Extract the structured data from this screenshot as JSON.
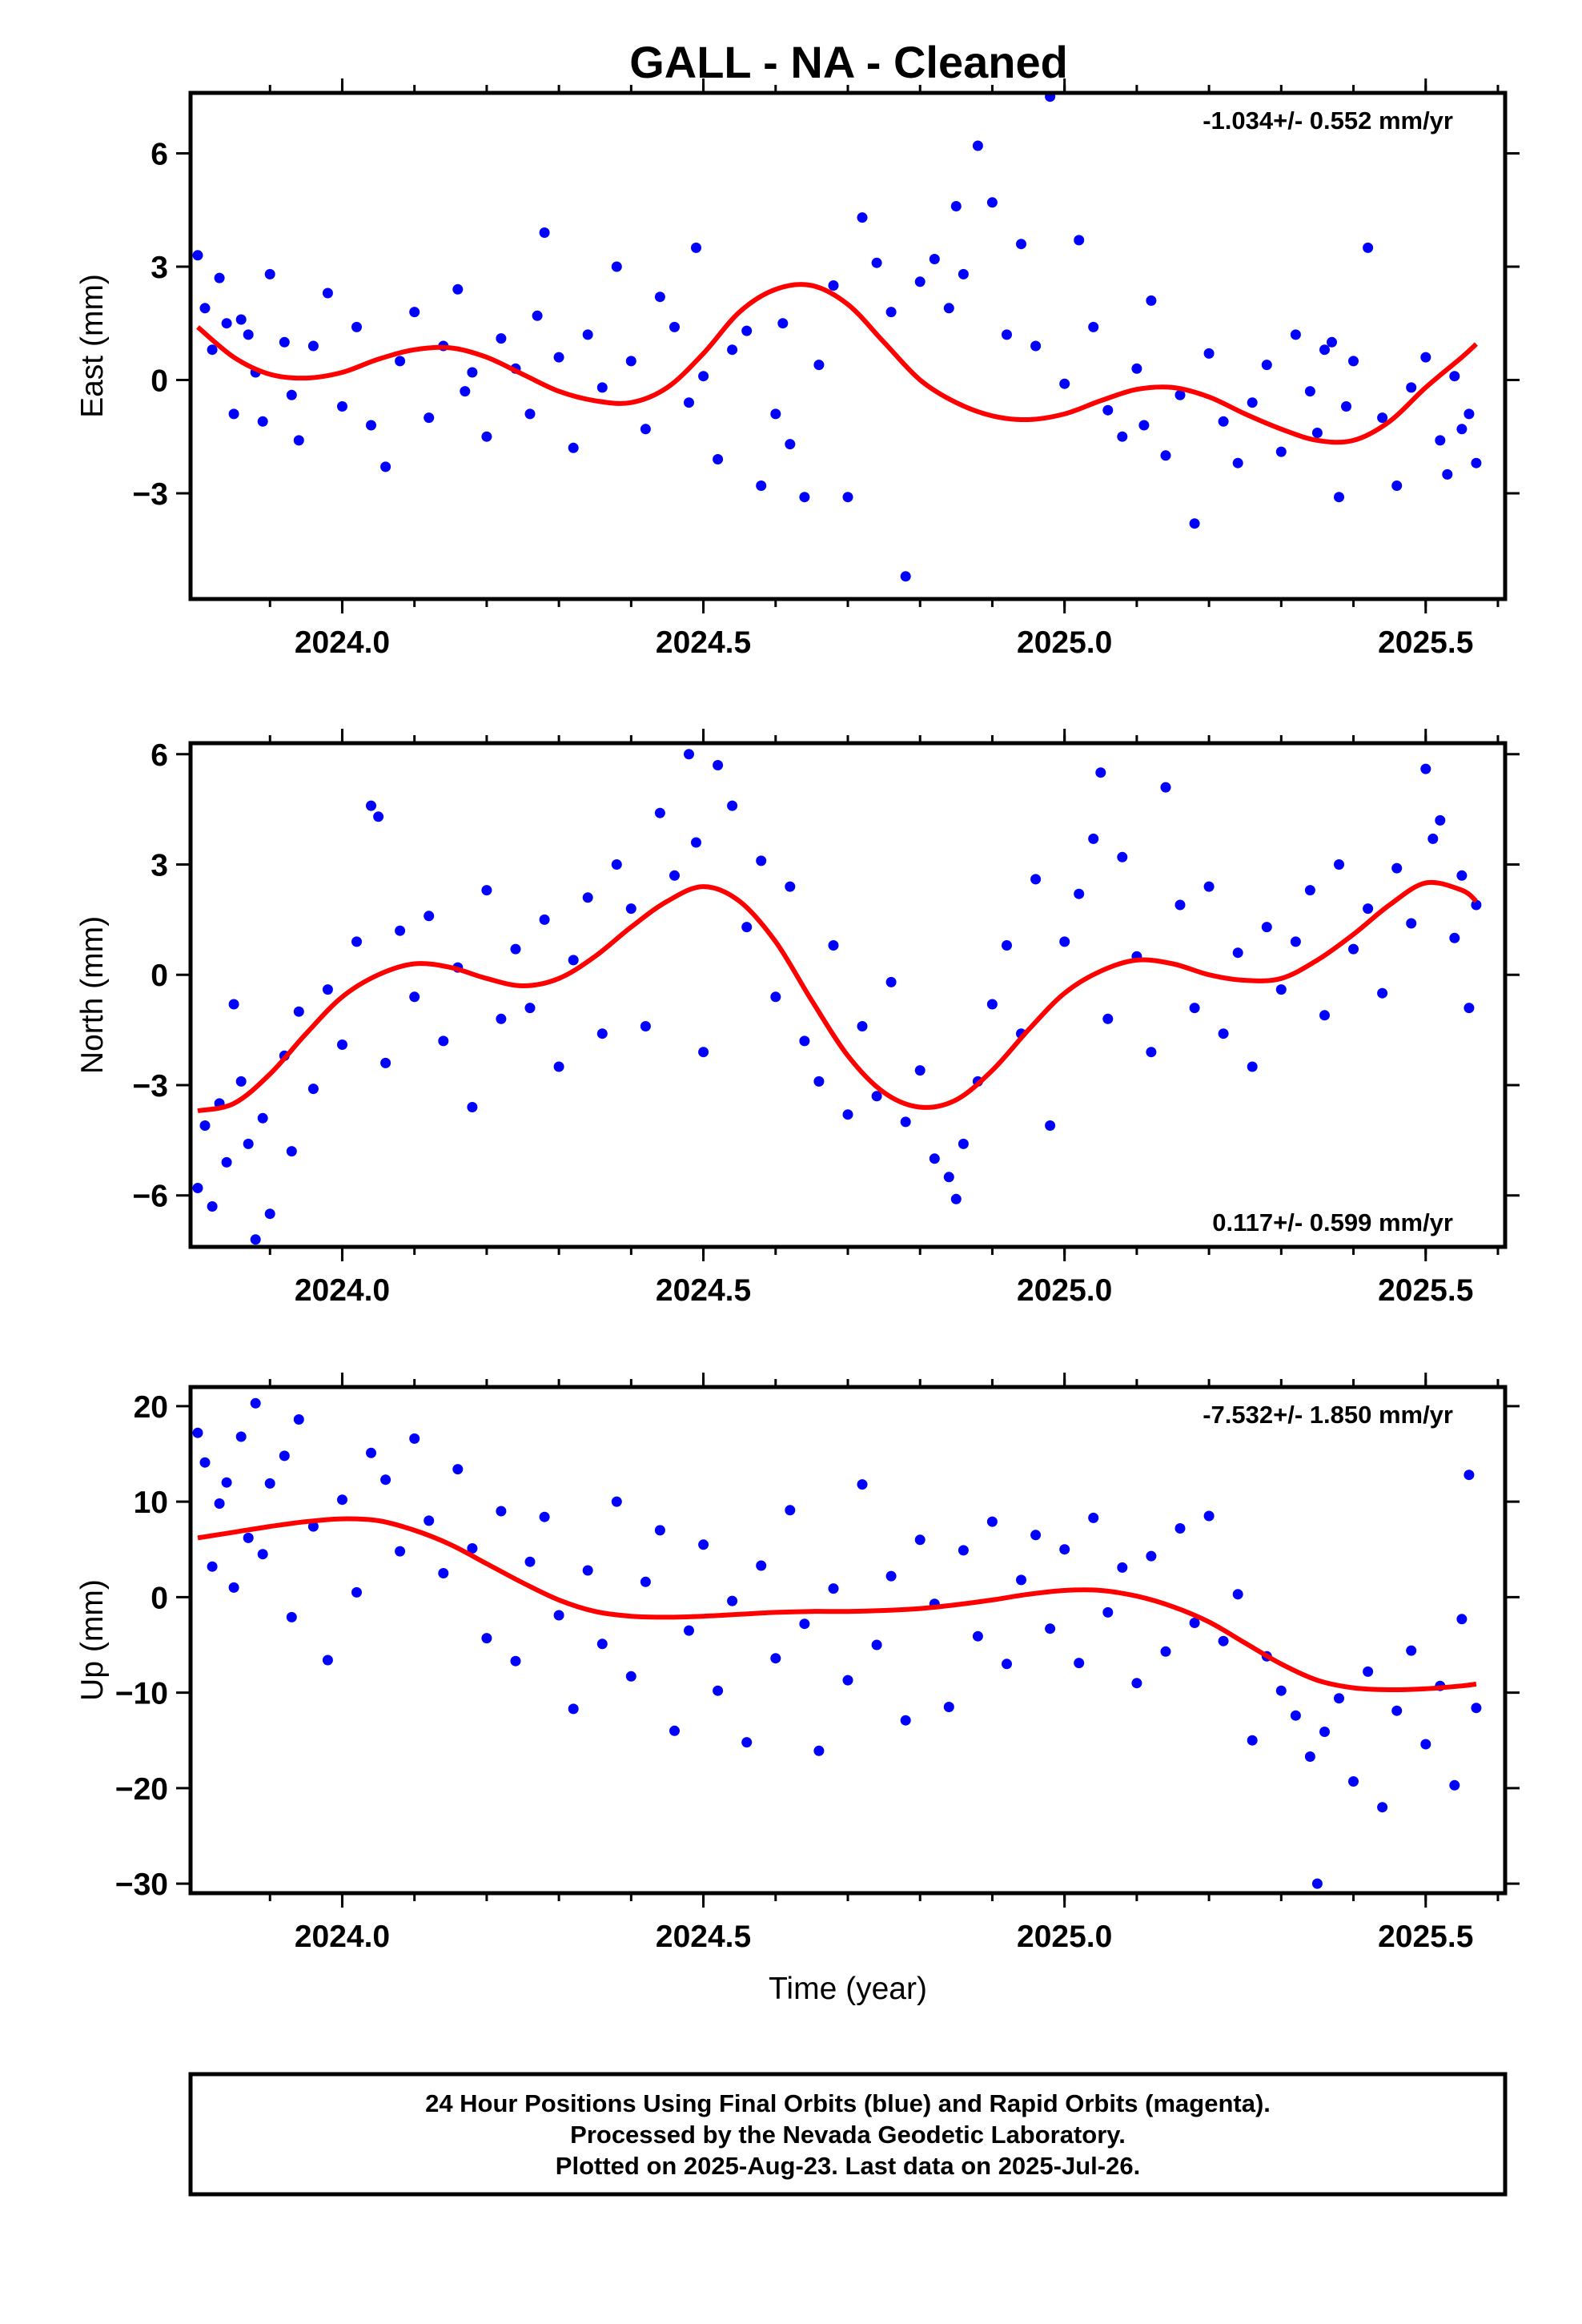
{
  "title": "GALL  - NA - Cleaned",
  "footer": {
    "lines": [
      "24 Hour Positions Using Final Orbits (blue) and Rapid Orbits (magenta).",
      "Processed by the Nevada Geodetic Laboratory.",
      "Plotted on 2025-Aug-23. Last data on 2025-Jul-26."
    ]
  },
  "colors": {
    "points": "#0000ff",
    "fit": "#ff0000",
    "frame": "#000000"
  },
  "chart_data": [
    {
      "type": "scatter",
      "name": "east",
      "ylabel": "East (mm)",
      "xlabel": "",
      "rate": "-1.034+/- 0.552 mm/yr",
      "rate_position": "top-right",
      "xlim": [
        2023.79,
        2025.61
      ],
      "ylim": [
        -5.8,
        7.6
      ],
      "xticks": [
        2024.0,
        2024.5,
        2025.0,
        2025.5
      ],
      "xtick_labels": [
        "2024.0",
        "2024.5",
        "2025.0",
        "2025.5"
      ],
      "yticks": [
        -3,
        0,
        3,
        6
      ],
      "ytick_labels": [
        "−3",
        "0",
        "3",
        "6"
      ],
      "grid": false,
      "fit": {
        "x": [
          2023.8,
          2023.85,
          2023.9,
          2023.95,
          2024.0,
          2024.05,
          2024.1,
          2024.15,
          2024.2,
          2024.25,
          2024.3,
          2024.35,
          2024.4,
          2024.45,
          2024.5,
          2024.55,
          2024.6,
          2024.65,
          2024.7,
          2024.75,
          2024.8,
          2024.85,
          2024.9,
          2024.95,
          2025.0,
          2025.05,
          2025.1,
          2025.15,
          2025.2,
          2025.25,
          2025.3,
          2025.35,
          2025.4,
          2025.45,
          2025.5,
          2025.55,
          2025.57
        ],
        "y": [
          1.4,
          0.6,
          0.15,
          0.05,
          0.2,
          0.55,
          0.8,
          0.85,
          0.6,
          0.15,
          -0.3,
          -0.55,
          -0.6,
          -0.2,
          0.7,
          1.8,
          2.4,
          2.5,
          2.0,
          1.0,
          0.0,
          -0.6,
          -0.95,
          -1.05,
          -0.9,
          -0.55,
          -0.25,
          -0.2,
          -0.45,
          -0.9,
          -1.3,
          -1.6,
          -1.6,
          -1.1,
          -0.2,
          0.6,
          0.95
        ]
      },
      "x": [
        2023.8,
        2023.81,
        2023.82,
        2023.83,
        2023.84,
        2023.85,
        2023.86,
        2023.87,
        2023.88,
        2023.89,
        2023.9,
        2023.92,
        2023.93,
        2023.94,
        2023.96,
        2023.98,
        2024.0,
        2024.02,
        2024.04,
        2024.06,
        2024.08,
        2024.1,
        2024.12,
        2024.14,
        2024.16,
        2024.17,
        2024.18,
        2024.2,
        2024.22,
        2024.24,
        2024.26,
        2024.27,
        2024.28,
        2024.3,
        2024.32,
        2024.34,
        2024.36,
        2024.38,
        2024.4,
        2024.42,
        2024.44,
        2024.46,
        2024.48,
        2024.49,
        2024.5,
        2024.52,
        2024.54,
        2024.56,
        2024.58,
        2024.6,
        2024.61,
        2024.62,
        2024.64,
        2024.66,
        2024.68,
        2024.7,
        2024.72,
        2024.74,
        2024.76,
        2024.78,
        2024.8,
        2024.82,
        2024.84,
        2024.85,
        2024.86,
        2024.88,
        2024.9,
        2024.92,
        2024.94,
        2024.96,
        2024.98,
        2025.0,
        2025.02,
        2025.04,
        2025.06,
        2025.08,
        2025.1,
        2025.11,
        2025.12,
        2025.14,
        2025.16,
        2025.18,
        2025.2,
        2025.22,
        2025.24,
        2025.26,
        2025.28,
        2025.3,
        2025.32,
        2025.34,
        2025.35,
        2025.36,
        2025.37,
        2025.38,
        2025.39,
        2025.4,
        2025.42,
        2025.44,
        2025.46,
        2025.48,
        2025.5,
        2025.52,
        2025.53,
        2025.54,
        2025.55,
        2025.56,
        2025.57
      ],
      "y": [
        3.3,
        1.9,
        0.8,
        2.7,
        1.5,
        -0.9,
        1.6,
        1.2,
        0.2,
        -1.1,
        2.8,
        1.0,
        -0.4,
        -1.6,
        0.9,
        2.3,
        -0.7,
        1.4,
        -1.2,
        -2.3,
        0.5,
        1.8,
        -1.0,
        0.9,
        2.4,
        -0.3,
        0.2,
        -1.5,
        1.1,
        0.3,
        -0.9,
        1.7,
        3.9,
        0.6,
        -1.8,
        1.2,
        -0.2,
        3.0,
        0.5,
        -1.3,
        2.2,
        1.4,
        -0.6,
        3.5,
        0.1,
        -2.1,
        0.8,
        1.3,
        -2.8,
        -0.9,
        1.5,
        -1.7,
        -3.1,
        0.4,
        2.5,
        -3.1,
        4.3,
        3.1,
        1.8,
        -5.2,
        2.6,
        3.2,
        1.9,
        4.6,
        2.8,
        6.2,
        4.7,
        1.2,
        3.6,
        0.9,
        7.5,
        -0.1,
        3.7,
        1.4,
        -0.8,
        -1.5,
        0.3,
        -1.2,
        2.1,
        -2.0,
        -0.4,
        -3.8,
        0.7,
        -1.1,
        -2.2,
        -0.6,
        0.4,
        -1.9,
        1.2,
        -0.3,
        -1.4,
        0.8,
        1.0,
        -3.1,
        -0.7,
        0.5,
        3.5,
        -1.0,
        -2.8,
        -0.2,
        0.6,
        -1.6,
        -2.5,
        0.1,
        -1.3,
        -0.9,
        -2.2
      ]
    },
    {
      "type": "scatter",
      "name": "north",
      "ylabel": "North (mm)",
      "xlabel": "",
      "rate": "0.117+/- 0.599 mm/yr",
      "rate_position": "bottom-right",
      "xlim": [
        2023.79,
        2025.61
      ],
      "ylim": [
        -7.4,
        6.3
      ],
      "xticks": [
        2024.0,
        2024.5,
        2025.0,
        2025.5
      ],
      "xtick_labels": [
        "2024.0",
        "2024.5",
        "2025.0",
        "2025.5"
      ],
      "yticks": [
        -6,
        -3,
        0,
        3,
        6
      ],
      "ytick_labels": [
        "−6",
        "−3",
        "0",
        "3",
        "6"
      ],
      "grid": false,
      "fit": {
        "x": [
          2023.8,
          2023.85,
          2023.9,
          2023.95,
          2024.0,
          2024.05,
          2024.1,
          2024.15,
          2024.2,
          2024.25,
          2024.3,
          2024.35,
          2024.4,
          2024.45,
          2024.5,
          2024.55,
          2024.6,
          2024.65,
          2024.7,
          2024.75,
          2024.8,
          2024.85,
          2024.9,
          2024.95,
          2025.0,
          2025.05,
          2025.1,
          2025.15,
          2025.2,
          2025.25,
          2025.3,
          2025.35,
          2025.4,
          2025.45,
          2025.5,
          2025.55,
          2025.57
        ],
        "y": [
          -3.7,
          -3.5,
          -2.7,
          -1.6,
          -0.6,
          0.0,
          0.3,
          0.2,
          -0.1,
          -0.3,
          -0.1,
          0.5,
          1.3,
          2.0,
          2.4,
          2.0,
          0.9,
          -0.7,
          -2.2,
          -3.2,
          -3.6,
          -3.4,
          -2.6,
          -1.5,
          -0.5,
          0.1,
          0.4,
          0.3,
          0.0,
          -0.15,
          -0.1,
          0.4,
          1.1,
          1.9,
          2.5,
          2.3,
          2.0
        ]
      },
      "x": [
        2023.8,
        2023.81,
        2023.82,
        2023.83,
        2023.84,
        2023.85,
        2023.86,
        2023.87,
        2023.88,
        2023.89,
        2023.9,
        2023.92,
        2023.93,
        2023.94,
        2023.96,
        2023.98,
        2024.0,
        2024.02,
        2024.04,
        2024.05,
        2024.06,
        2024.08,
        2024.1,
        2024.12,
        2024.14,
        2024.16,
        2024.18,
        2024.2,
        2024.22,
        2024.24,
        2024.26,
        2024.28,
        2024.3,
        2024.32,
        2024.34,
        2024.36,
        2024.38,
        2024.4,
        2024.42,
        2024.44,
        2024.46,
        2024.48,
        2024.49,
        2024.5,
        2024.52,
        2024.54,
        2024.56,
        2024.58,
        2024.6,
        2024.62,
        2024.64,
        2024.66,
        2024.68,
        2024.7,
        2024.72,
        2024.74,
        2024.76,
        2024.78,
        2024.8,
        2024.82,
        2024.84,
        2024.85,
        2024.86,
        2024.88,
        2024.9,
        2024.92,
        2024.94,
        2024.96,
        2024.98,
        2025.0,
        2025.02,
        2025.04,
        2025.05,
        2025.06,
        2025.08,
        2025.1,
        2025.12,
        2025.14,
        2025.16,
        2025.18,
        2025.2,
        2025.22,
        2025.24,
        2025.26,
        2025.28,
        2025.3,
        2025.32,
        2025.34,
        2025.36,
        2025.38,
        2025.4,
        2025.42,
        2025.44,
        2025.46,
        2025.48,
        2025.5,
        2025.51,
        2025.52,
        2025.54,
        2025.55,
        2025.56,
        2025.57
      ],
      "y": [
        -5.8,
        -4.1,
        -6.3,
        -3.5,
        -5.1,
        -0.8,
        -2.9,
        -4.6,
        -7.2,
        -3.9,
        -6.5,
        -2.2,
        -4.8,
        -1.0,
        -3.1,
        -0.4,
        -1.9,
        0.9,
        4.6,
        4.3,
        -2.4,
        1.2,
        -0.6,
        1.6,
        -1.8,
        0.2,
        -3.6,
        2.3,
        -1.2,
        0.7,
        -0.9,
        1.5,
        -2.5,
        0.4,
        2.1,
        -1.6,
        3.0,
        1.8,
        -1.4,
        4.4,
        2.7,
        6.0,
        3.6,
        -2.1,
        5.7,
        4.6,
        1.3,
        3.1,
        -0.6,
        2.4,
        -1.8,
        -2.9,
        0.8,
        -3.8,
        -1.4,
        -3.3,
        -0.2,
        -4.0,
        -2.6,
        -5.0,
        -5.5,
        -6.1,
        -4.6,
        -2.9,
        -0.8,
        0.8,
        -1.6,
        2.6,
        -4.1,
        0.9,
        2.2,
        3.7,
        5.5,
        -1.2,
        3.2,
        0.5,
        -2.1,
        5.1,
        1.9,
        -0.9,
        2.4,
        -1.6,
        0.6,
        -2.5,
        1.3,
        -0.4,
        0.9,
        2.3,
        -1.1,
        3.0,
        0.7,
        1.8,
        -0.5,
        2.9,
        1.4,
        5.6,
        3.7,
        4.2,
        1.0,
        2.7,
        -0.9,
        1.9
      ]
    },
    {
      "type": "scatter",
      "name": "up",
      "ylabel": "Up (mm)",
      "xlabel": "Time (year)",
      "rate": "-7.532+/- 1.850 mm/yr",
      "rate_position": "top-right",
      "xlim": [
        2023.79,
        2025.61
      ],
      "ylim": [
        -31,
        22
      ],
      "xticks": [
        2024.0,
        2024.5,
        2025.0,
        2025.5
      ],
      "xtick_labels": [
        "2024.0",
        "2024.5",
        "2025.0",
        "2025.5"
      ],
      "yticks": [
        -30,
        -20,
        -10,
        0,
        10,
        20
      ],
      "ytick_labels": [
        "−30",
        "−20",
        "−10",
        "0",
        "10",
        "20"
      ],
      "grid": false,
      "fit": {
        "x": [
          2023.8,
          2023.85,
          2023.9,
          2023.95,
          2024.0,
          2024.05,
          2024.1,
          2024.15,
          2024.2,
          2024.25,
          2024.3,
          2024.35,
          2024.4,
          2024.45,
          2024.5,
          2024.55,
          2024.6,
          2024.65,
          2024.7,
          2024.75,
          2024.8,
          2024.85,
          2024.9,
          2024.95,
          2025.0,
          2025.05,
          2025.1,
          2025.15,
          2025.2,
          2025.25,
          2025.3,
          2025.35,
          2025.4,
          2025.45,
          2025.5,
          2025.55,
          2025.57
        ],
        "y": [
          6.2,
          6.8,
          7.4,
          7.9,
          8.2,
          8.0,
          7.0,
          5.5,
          3.5,
          1.5,
          -0.3,
          -1.5,
          -2.0,
          -2.1,
          -2.0,
          -1.8,
          -1.6,
          -1.5,
          -1.5,
          -1.4,
          -1.2,
          -0.8,
          -0.3,
          0.3,
          0.7,
          0.7,
          0.1,
          -1.0,
          -2.6,
          -4.8,
          -7.0,
          -8.7,
          -9.5,
          -9.7,
          -9.6,
          -9.3,
          -9.1
        ]
      },
      "x": [
        2023.8,
        2023.81,
        2023.82,
        2023.83,
        2023.84,
        2023.85,
        2023.86,
        2023.87,
        2023.88,
        2023.89,
        2023.9,
        2023.92,
        2023.93,
        2023.94,
        2023.96,
        2023.98,
        2024.0,
        2024.02,
        2024.04,
        2024.06,
        2024.08,
        2024.1,
        2024.12,
        2024.14,
        2024.16,
        2024.18,
        2024.2,
        2024.22,
        2024.24,
        2024.26,
        2024.28,
        2024.3,
        2024.32,
        2024.34,
        2024.36,
        2024.38,
        2024.4,
        2024.42,
        2024.44,
        2024.46,
        2024.48,
        2024.5,
        2024.52,
        2024.54,
        2024.56,
        2024.58,
        2024.6,
        2024.62,
        2024.64,
        2024.66,
        2024.68,
        2024.7,
        2024.72,
        2024.74,
        2024.76,
        2024.78,
        2024.8,
        2024.82,
        2024.84,
        2024.86,
        2024.88,
        2024.9,
        2024.92,
        2024.94,
        2024.96,
        2024.98,
        2025.0,
        2025.02,
        2025.04,
        2025.06,
        2025.08,
        2025.1,
        2025.12,
        2025.14,
        2025.16,
        2025.18,
        2025.2,
        2025.22,
        2025.24,
        2025.26,
        2025.28,
        2025.3,
        2025.32,
        2025.34,
        2025.35,
        2025.36,
        2025.38,
        2025.4,
        2025.42,
        2025.44,
        2025.46,
        2025.48,
        2025.5,
        2025.52,
        2025.54,
        2025.55,
        2025.56,
        2025.57
      ],
      "y": [
        17.2,
        14.1,
        3.2,
        9.8,
        12.0,
        1.0,
        16.8,
        6.2,
        20.3,
        4.5,
        11.9,
        14.8,
        -2.1,
        18.6,
        7.4,
        -6.6,
        10.2,
        0.5,
        15.1,
        12.3,
        4.8,
        16.6,
        8.0,
        2.5,
        13.4,
        5.1,
        -4.3,
        9.0,
        -6.7,
        3.7,
        8.4,
        -1.9,
        -11.7,
        2.8,
        -4.9,
        10.0,
        -8.3,
        1.6,
        7.0,
        -14.0,
        -3.5,
        5.5,
        -9.8,
        -0.4,
        -15.2,
        3.3,
        -6.4,
        9.1,
        -2.8,
        -16.1,
        0.9,
        -8.7,
        11.8,
        -5.0,
        2.2,
        -12.9,
        6.0,
        -0.7,
        -11.5,
        4.9,
        -4.1,
        7.9,
        -7.0,
        1.8,
        6.5,
        -3.3,
        5.0,
        -6.9,
        8.3,
        -1.6,
        3.1,
        -9.0,
        4.3,
        -5.7,
        7.2,
        -2.7,
        8.5,
        -4.6,
        0.3,
        -15.0,
        -6.2,
        -9.8,
        -12.4,
        -16.7,
        -30.0,
        -14.1,
        -10.6,
        -19.3,
        -7.8,
        -22.0,
        -11.9,
        -5.6,
        -15.4,
        -9.3,
        -19.7,
        -2.3,
        12.8,
        -11.6
      ]
    }
  ]
}
